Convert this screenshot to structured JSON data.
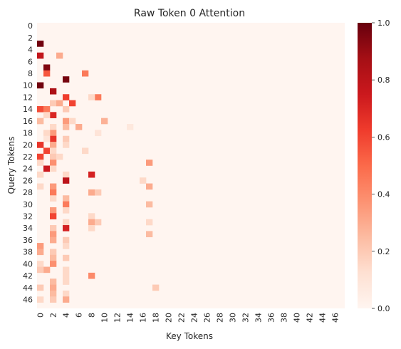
{
  "chart_data": {
    "type": "heatmap",
    "title": "Raw Token 0 Attention",
    "xlabel": "Key Tokens",
    "ylabel": "Query Tokens",
    "rows": 48,
    "cols": 48,
    "x_ticks": [
      0,
      2,
      4,
      6,
      8,
      10,
      12,
      14,
      16,
      18,
      20,
      22,
      24,
      26,
      28,
      30,
      32,
      34,
      36,
      38,
      40,
      42,
      44,
      46
    ],
    "y_ticks": [
      0,
      2,
      4,
      6,
      8,
      10,
      12,
      14,
      16,
      18,
      20,
      22,
      24,
      26,
      28,
      30,
      32,
      34,
      36,
      38,
      40,
      42,
      44,
      46
    ],
    "colorbar": {
      "min": 0.0,
      "max": 1.0,
      "ticks": [
        "0.0",
        "0.2",
        "0.4",
        "0.6",
        "0.8",
        "1.0"
      ]
    },
    "colormap": [
      "#fff5f0",
      "#fee0d2",
      "#fcbba1",
      "#fc9272",
      "#fb6a4a",
      "#ef3b2c",
      "#cb181d",
      "#a50f15",
      "#67000d"
    ],
    "cells": [
      [
        3,
        0,
        0.98
      ],
      [
        5,
        0,
        0.78
      ],
      [
        5,
        3,
        0.3
      ],
      [
        7,
        1,
        0.95
      ],
      [
        8,
        1,
        0.55
      ],
      [
        8,
        7,
        0.45
      ],
      [
        9,
        4,
        0.97
      ],
      [
        10,
        0,
        0.98
      ],
      [
        11,
        2,
        0.85
      ],
      [
        12,
        4,
        0.62
      ],
      [
        12,
        9,
        0.45
      ],
      [
        12,
        8,
        0.15
      ],
      [
        13,
        2,
        0.2
      ],
      [
        13,
        3,
        0.3
      ],
      [
        13,
        5,
        0.6
      ],
      [
        14,
        0,
        0.58
      ],
      [
        14,
        1,
        0.45
      ],
      [
        14,
        4,
        0.2
      ],
      [
        15,
        2,
        0.7
      ],
      [
        15,
        1,
        0.15
      ],
      [
        16,
        0,
        0.25
      ],
      [
        16,
        4,
        0.35
      ],
      [
        16,
        10,
        0.28
      ],
      [
        16,
        5,
        0.15
      ],
      [
        17,
        4,
        0.25
      ],
      [
        17,
        6,
        0.3
      ],
      [
        17,
        2,
        0.15
      ],
      [
        17,
        14,
        0.08
      ],
      [
        18,
        2,
        0.35
      ],
      [
        18,
        1,
        0.15
      ],
      [
        18,
        9,
        0.1
      ],
      [
        19,
        2,
        0.65
      ],
      [
        19,
        4,
        0.2
      ],
      [
        19,
        1,
        0.1
      ],
      [
        20,
        0,
        0.65
      ],
      [
        20,
        2,
        0.3
      ],
      [
        20,
        4,
        0.15
      ],
      [
        21,
        1,
        0.6
      ],
      [
        21,
        7,
        0.15
      ],
      [
        21,
        2,
        0.15
      ],
      [
        22,
        0,
        0.6
      ],
      [
        22,
        2,
        0.2
      ],
      [
        22,
        3,
        0.15
      ],
      [
        23,
        2,
        0.38
      ],
      [
        23,
        0,
        0.15
      ],
      [
        23,
        17,
        0.35
      ],
      [
        24,
        1,
        0.75
      ],
      [
        24,
        2,
        0.15
      ],
      [
        25,
        0,
        0.15
      ],
      [
        25,
        8,
        0.72
      ],
      [
        25,
        4,
        0.15
      ],
      [
        26,
        4,
        0.8
      ],
      [
        26,
        16,
        0.15
      ],
      [
        27,
        2,
        0.35
      ],
      [
        27,
        17,
        0.3
      ],
      [
        27,
        0,
        0.15
      ],
      [
        28,
        2,
        0.45
      ],
      [
        28,
        8,
        0.3
      ],
      [
        28,
        9,
        0.2
      ],
      [
        29,
        2,
        0.15
      ],
      [
        29,
        4,
        0.25
      ],
      [
        30,
        4,
        0.45
      ],
      [
        30,
        17,
        0.25
      ],
      [
        31,
        2,
        0.35
      ],
      [
        31,
        4,
        0.15
      ],
      [
        32,
        2,
        0.6
      ],
      [
        32,
        8,
        0.15
      ],
      [
        33,
        4,
        0.15
      ],
      [
        33,
        8,
        0.3
      ],
      [
        33,
        9,
        0.2
      ],
      [
        33,
        17,
        0.15
      ],
      [
        34,
        4,
        0.72
      ],
      [
        34,
        2,
        0.2
      ],
      [
        34,
        8,
        0.15
      ],
      [
        35,
        2,
        0.35
      ],
      [
        35,
        17,
        0.25
      ],
      [
        36,
        2,
        0.3
      ],
      [
        36,
        4,
        0.2
      ],
      [
        37,
        0,
        0.35
      ],
      [
        37,
        4,
        0.15
      ],
      [
        38,
        0,
        0.3
      ],
      [
        38,
        2,
        0.2
      ],
      [
        39,
        2,
        0.25
      ],
      [
        39,
        4,
        0.2
      ],
      [
        40,
        2,
        0.38
      ],
      [
        40,
        0,
        0.15
      ],
      [
        41,
        1,
        0.3
      ],
      [
        41,
        0,
        0.2
      ],
      [
        41,
        4,
        0.15
      ],
      [
        42,
        8,
        0.4
      ],
      [
        42,
        4,
        0.15
      ],
      [
        43,
        2,
        0.25
      ],
      [
        43,
        4,
        0.15
      ],
      [
        44,
        0,
        0.2
      ],
      [
        44,
        2,
        0.3
      ],
      [
        44,
        18,
        0.2
      ],
      [
        45,
        2,
        0.25
      ],
      [
        45,
        4,
        0.15
      ],
      [
        46,
        0,
        0.15
      ],
      [
        46,
        2,
        0.2
      ],
      [
        46,
        4,
        0.3
      ]
    ]
  }
}
